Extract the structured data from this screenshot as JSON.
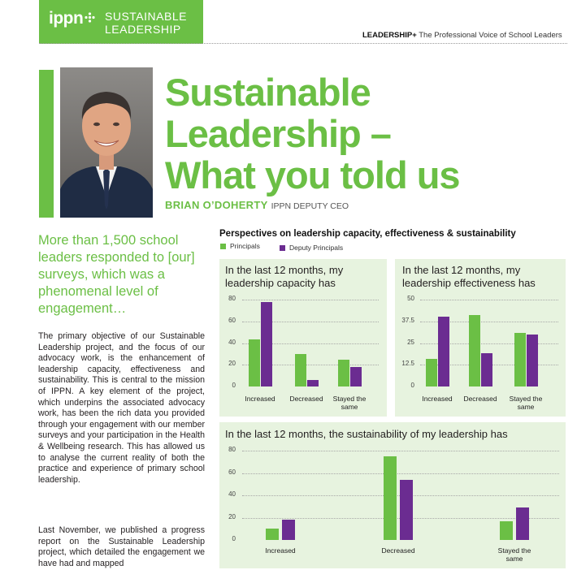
{
  "header": {
    "logo": "ippn",
    "section_line1": "SUSTAINABLE",
    "section_line2": "LEADERSHIP",
    "tagline_bold": "LEADERSHIP+",
    "tagline": "The Professional Voice of School Leaders"
  },
  "article": {
    "title_line1": "Sustainable",
    "title_line2": "Leadership –",
    "title_line3": "What you told us",
    "author_name": "BRIAN O’DOHERTY",
    "author_role": "IPPN DEPUTY CEO",
    "pull_quote": "More than 1,500 school leaders responded to [our] surveys, which was a phenomenal level of engagement…",
    "paragraph1": "The primary objective of our Sustainable Leadership project, and the focus of our advocacy work, is the enhancement of leadership capacity, effectiveness and sustainability. This is central to the mission of IPPN. A key element of the project, which underpins the associated advocacy work, has been the rich data you provided through your engagement with our member surveys and your participation in the Health & Wellbeing research. This has allowed us to analyse the current reality of both the practice and experience of primary school leadership.",
    "paragraph2": "Last November, we published a progress report on the Sustainable Leadership project, which detailed the engagement we have had and mapped"
  },
  "colors": {
    "green": "#6bbf45",
    "purple": "#6b2c91",
    "panel": "#e7f3df"
  },
  "chart_data": [
    {
      "type": "bar",
      "title": "In the last 12 months, my leadership capacity has",
      "group_title": "Perspectives on leadership capacity, effectiveness & sustainability",
      "categories": [
        "Increased",
        "Decreased",
        "Stayed the same"
      ],
      "series": [
        {
          "name": "Principals",
          "values": [
            43,
            30,
            25
          ]
        },
        {
          "name": "Deputy Principals",
          "values": [
            78,
            6,
            18
          ]
        }
      ],
      "yticks": [
        "80",
        "60",
        "40",
        "20",
        "0"
      ],
      "ylim": [
        0,
        80
      ],
      "grid": true,
      "legend": "top-left"
    },
    {
      "type": "bar",
      "title": "In the last 12 months, my leadership effectiveness has",
      "categories": [
        "Increased",
        "Decreased",
        "Stayed the same"
      ],
      "series": [
        {
          "name": "Principals",
          "values": [
            16,
            41,
            31
          ]
        },
        {
          "name": "Deputy Principals",
          "values": [
            40,
            19,
            30
          ]
        }
      ],
      "yticks": [
        "50",
        "37.5",
        "25",
        "12.5",
        "0"
      ],
      "ylim": [
        0,
        50
      ],
      "grid": true
    },
    {
      "type": "bar",
      "title": "In the last 12 months, the sustainability of my leadership has",
      "categories": [
        "Increased",
        "Decreased",
        "Stayed the same"
      ],
      "series": [
        {
          "name": "Principals",
          "values": [
            10,
            75,
            17
          ]
        },
        {
          "name": "Deputy Principals",
          "values": [
            18,
            54,
            29
          ]
        }
      ],
      "yticks": [
        "80",
        "60",
        "40",
        "20",
        "0"
      ],
      "ylim": [
        0,
        80
      ],
      "grid": true
    }
  ]
}
